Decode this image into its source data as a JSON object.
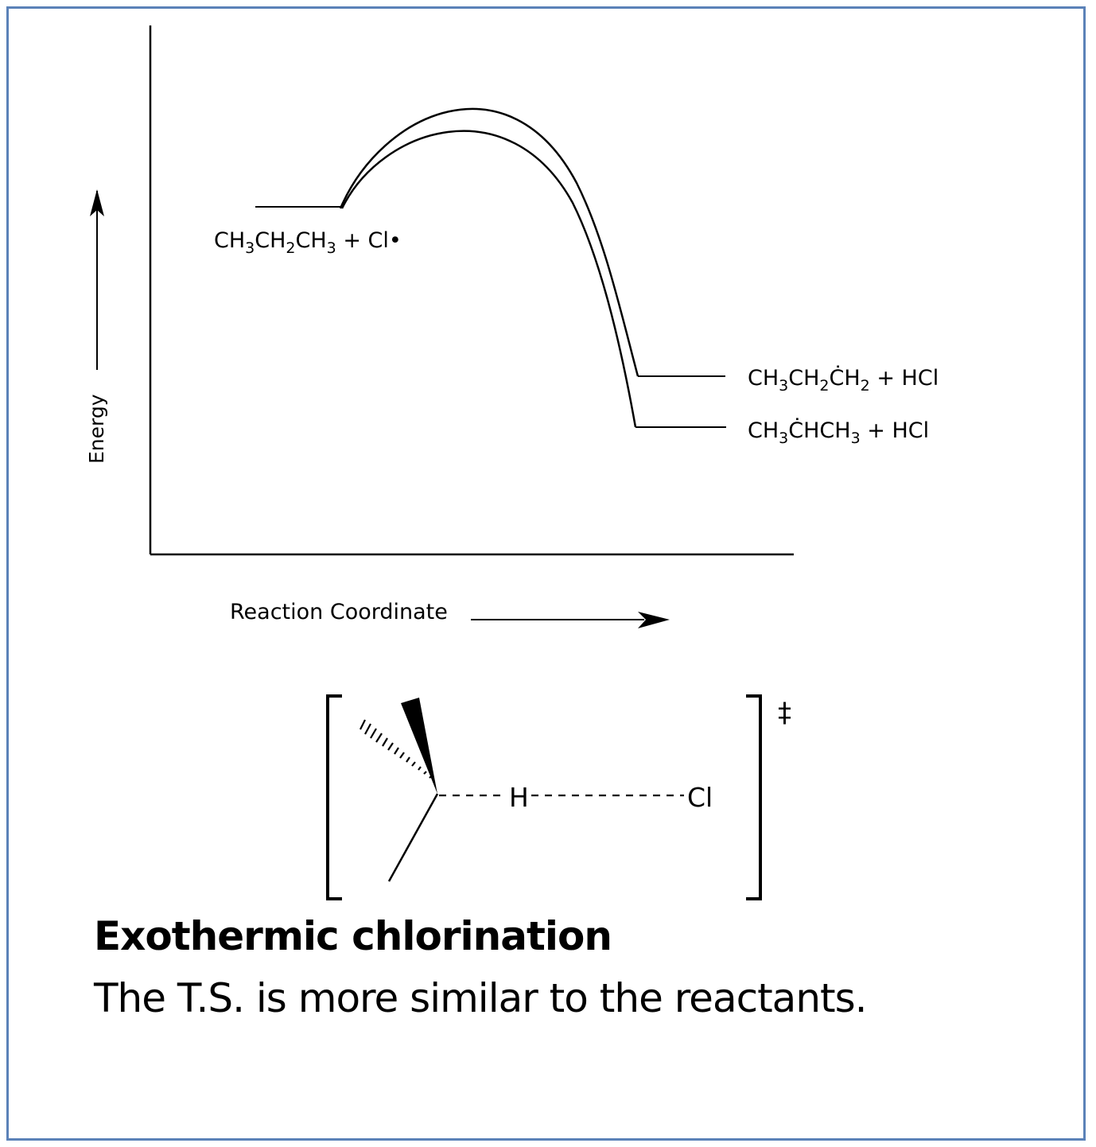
{
  "diagram": {
    "y_axis_label": "Energy",
    "x_axis_label": "Reaction Coordinate",
    "reactants": {
      "parts": [
        {
          "t": "CH",
          "sub": false
        },
        {
          "t": "3",
          "sub": true
        },
        {
          "t": "CH",
          "sub": false
        },
        {
          "t": "2",
          "sub": true
        },
        {
          "t": "CH",
          "sub": false
        },
        {
          "t": "3",
          "sub": true
        },
        {
          "t": " + Cl•",
          "sub": false
        }
      ]
    },
    "product_primary": {
      "parts": [
        {
          "t": "CH",
          "sub": false
        },
        {
          "t": "3",
          "sub": true
        },
        {
          "t": "CH",
          "sub": false
        },
        {
          "t": "2",
          "sub": true
        },
        {
          "t": "ĊH",
          "sub": false
        },
        {
          "t": "2",
          "sub": true
        },
        {
          "t": " + HCl",
          "sub": false
        }
      ]
    },
    "product_secondary": {
      "parts": [
        {
          "t": "CH",
          "sub": false
        },
        {
          "t": "3",
          "sub": true
        },
        {
          "t": "ĊHCH",
          "sub": false
        },
        {
          "t": "3",
          "sub": true
        },
        {
          "t": " + HCl",
          "sub": false
        }
      ]
    },
    "transition_state": {
      "h_label": "H",
      "cl_label": "Cl",
      "double_dagger": "‡"
    }
  },
  "caption": {
    "title": "Exothermic chlorination",
    "subtitle": "The T.S. is more similar to the reactants."
  },
  "colors": {
    "frame_border": "#5b82b8",
    "ink": "#000000"
  }
}
